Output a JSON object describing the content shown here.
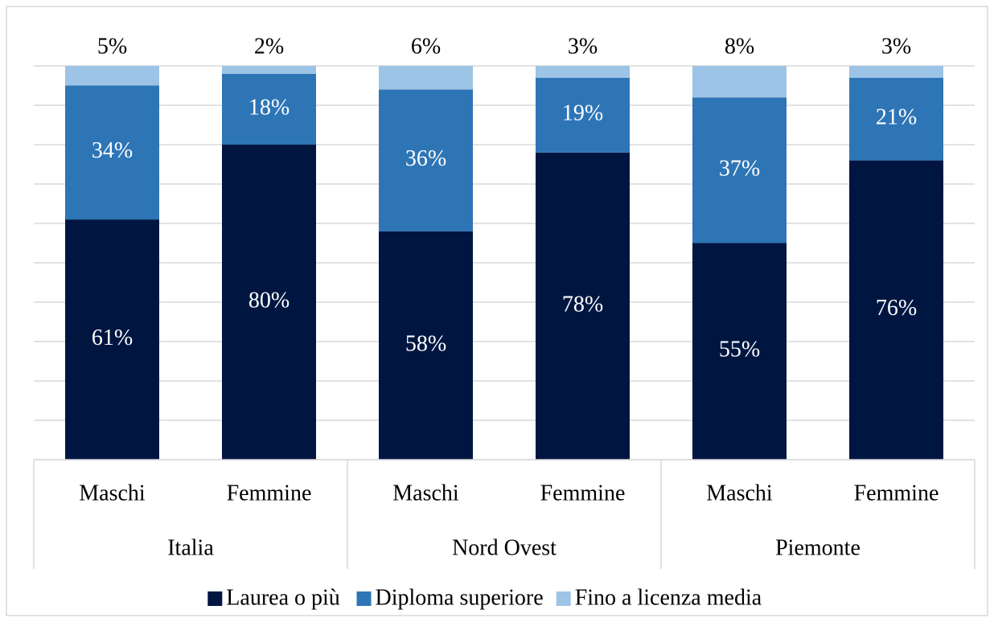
{
  "chart_data": {
    "type": "stacked_bar",
    "categories": [
      "Maschi",
      "Femmine",
      "Maschi",
      "Femmine",
      "Maschi",
      "Femmine"
    ],
    "groups": [
      "Italia",
      "Nord Ovest",
      "Piemonte"
    ],
    "series": [
      {
        "name": "Laurea o più",
        "color": "#001641",
        "values": [
          61,
          80,
          58,
          78,
          55,
          76
        ],
        "value_labels": [
          "61%",
          "80%",
          "58%",
          "78%",
          "55%",
          "76%"
        ]
      },
      {
        "name": "Diploma superiore",
        "color": "#2e75b6",
        "values": [
          34,
          18,
          36,
          19,
          37,
          21
        ],
        "value_labels": [
          "34%",
          "18%",
          "36%",
          "19%",
          "37%",
          "21%"
        ]
      },
      {
        "name": "Fino a licenza media",
        "color": "#9dc3e6",
        "values": [
          5,
          2,
          6,
          3,
          8,
          3
        ],
        "value_labels": [
          "5%",
          "2%",
          "6%",
          "3%",
          "8%",
          "3%"
        ]
      }
    ],
    "ylim": [
      0,
      100
    ],
    "yticks": [
      0,
      10,
      20,
      30,
      40,
      50,
      60,
      70,
      80,
      90,
      100
    ],
    "grid": true,
    "legend": "bottom"
  }
}
